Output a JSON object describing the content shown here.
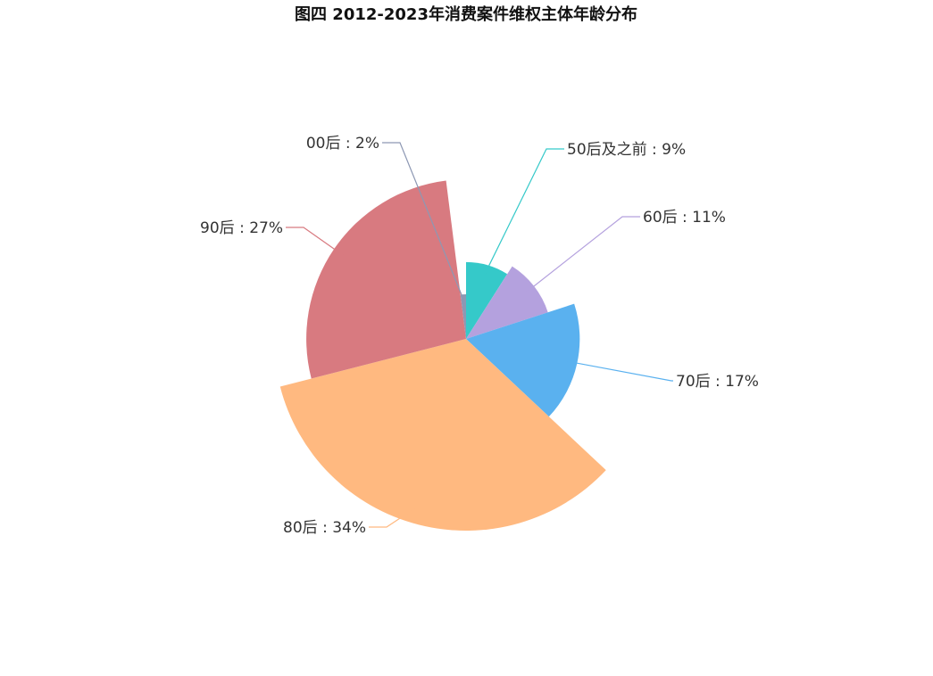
{
  "chart_data": {
    "type": "pie",
    "variant": "rose-radius",
    "title": "图四 2012-2023年消费案件维权主体年龄分布",
    "categories": [
      "50后及之前",
      "60后",
      "70后",
      "80后",
      "90后",
      "00后"
    ],
    "values": [
      9,
      11,
      17,
      34,
      27,
      2
    ],
    "unit": "%",
    "label_format": "{name} : {value}%",
    "colors": [
      "#35c9c9",
      "#b4a1de",
      "#5ab1ef",
      "#ffb980",
      "#d87a80",
      "#8d98b3"
    ],
    "legend": "none",
    "grid": false
  }
}
